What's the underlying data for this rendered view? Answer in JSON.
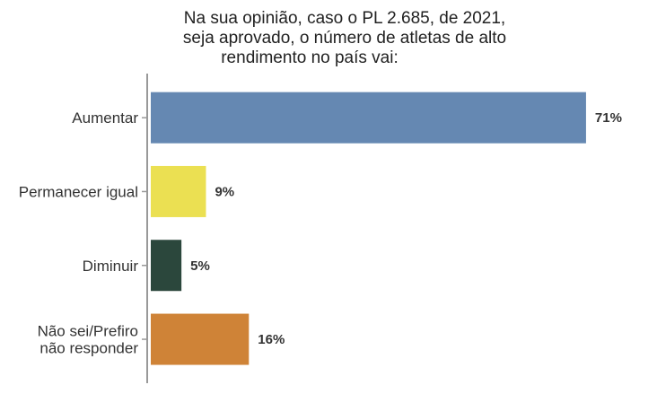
{
  "chart_data": {
    "type": "bar",
    "orientation": "horizontal",
    "title": [
      "Na sua opinião, caso o PL 2.685, de 2021,",
      "seja aprovado, o número de atletas de alto",
      "rendimento no país vai:"
    ],
    "categories": [
      [
        "Aumentar"
      ],
      [
        "Permanecer igual"
      ],
      [
        "Diminuir"
      ],
      [
        "Não sei/Prefiro",
        "não responder"
      ]
    ],
    "values": [
      71,
      9,
      5,
      16
    ],
    "value_labels": [
      "71%",
      "9%",
      "5%",
      "16%"
    ],
    "colors": [
      "#6588b2",
      "#ebe052",
      "#2b473c",
      "#cf8337"
    ],
    "xlabel": "",
    "ylabel": "",
    "xlim": [
      0,
      75
    ],
    "grid": false,
    "legend": "none"
  }
}
